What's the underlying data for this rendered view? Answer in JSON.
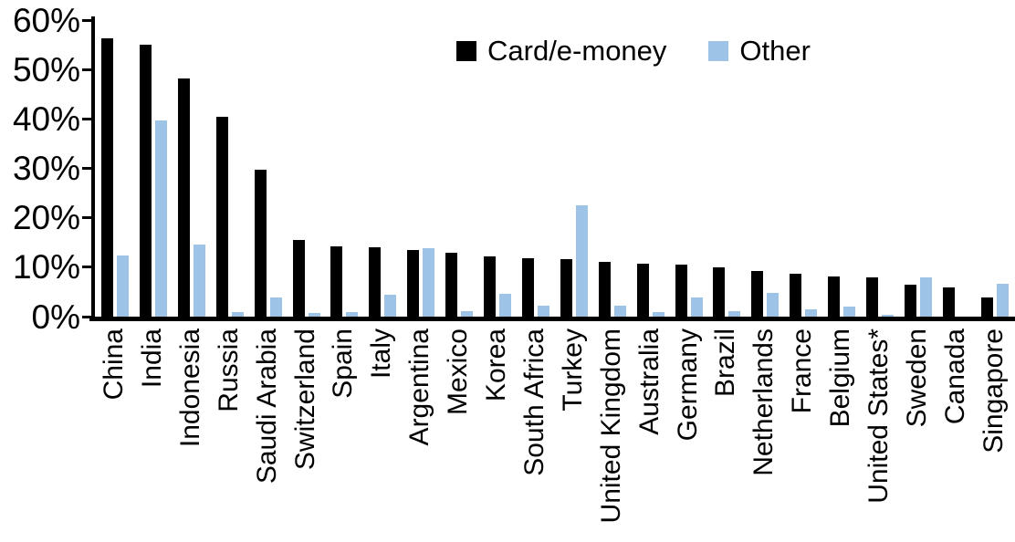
{
  "chart_data": {
    "type": "bar",
    "title": "",
    "xlabel": "",
    "ylabel": "",
    "ylim": [
      0,
      60
    ],
    "ytick_step": 10,
    "ytick_suffix": "%",
    "grid": false,
    "legend_position": "top-center",
    "categories": [
      "China",
      "India",
      "Indonesia",
      "Russia",
      "Saudi Arabia",
      "Switzerland",
      "Spain",
      "Italy",
      "Argentina",
      "Mexico",
      "Korea",
      "South Africa",
      "Turkey",
      "United Kingdom",
      "Australia",
      "Germany",
      "Brazil",
      "Netherlands",
      "France",
      "Belgium",
      "United States*",
      "Sweden",
      "Canada",
      "Singapore"
    ],
    "series": [
      {
        "name": "Card/e-money",
        "color": "#000000",
        "values": [
          56.3,
          55.0,
          48.2,
          40.4,
          29.8,
          15.6,
          14.2,
          14.0,
          13.4,
          12.9,
          12.2,
          11.8,
          11.6,
          11.1,
          10.8,
          10.6,
          10.0,
          9.3,
          8.7,
          8.2,
          7.9,
          6.5,
          6.0,
          3.9
        ]
      },
      {
        "name": "Other",
        "color": "#9DC3E6",
        "values": [
          12.3,
          39.7,
          14.5,
          0.9,
          3.9,
          0.7,
          0.9,
          4.5,
          13.8,
          1.2,
          4.6,
          2.3,
          22.5,
          2.3,
          0.9,
          3.9,
          1.1,
          4.8,
          1.4,
          2.0,
          0.3,
          7.9,
          0.0,
          6.6
        ]
      }
    ],
    "axis_color": "#000000"
  }
}
